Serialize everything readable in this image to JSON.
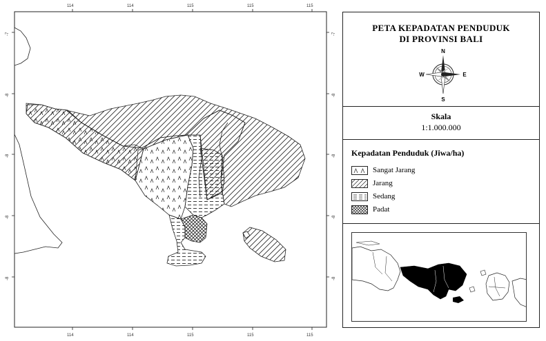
{
  "title": {
    "line1": "PETA KEPADATAN PENDUDUK",
    "line2": "DI PROVINSI BALI"
  },
  "compass": {
    "n": "N",
    "s": "S",
    "e": "E",
    "w": "W"
  },
  "scale": {
    "label": "Skala",
    "value": "1:1.000.000"
  },
  "legend": {
    "title": "Kepadatan Penduduk (Jiwa/ha)",
    "items": [
      {
        "label": "Sangat Jarang",
        "pattern": "sangat-jarang"
      },
      {
        "label": "Jarang",
        "pattern": "jarang"
      },
      {
        "label": "Sedang",
        "pattern": "sedang"
      },
      {
        "label": "Padat",
        "pattern": "padat"
      }
    ]
  },
  "graticule": {
    "top_labels": [
      "114",
      "114",
      "115",
      "115",
      "115"
    ],
    "bottom_labels": [
      "114",
      "114",
      "115",
      "115",
      "115"
    ],
    "left_labels": [
      "-7",
      "-8",
      "-8",
      "-8",
      "-8"
    ],
    "right_labels": [
      "-7",
      "-8",
      "-8",
      "-8",
      "-8"
    ]
  },
  "colors": {
    "line": "#222222",
    "inset_fill": "#000000"
  }
}
